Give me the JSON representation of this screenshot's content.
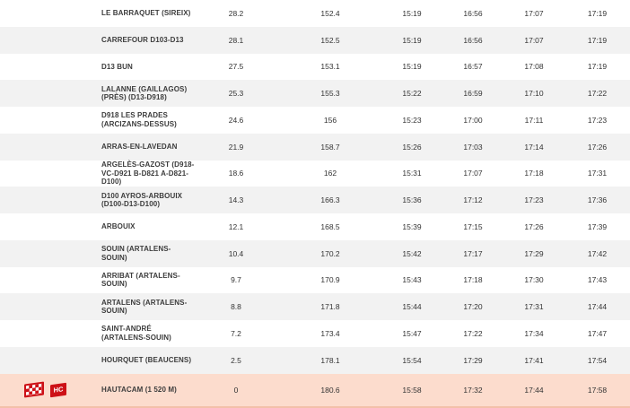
{
  "colors": {
    "row_bg": "#ffffff",
    "row_alt_bg": "#f2f2f2",
    "highlight_bg": "#fcdccd",
    "highlight_border": "#f3c0a9",
    "accent_red": "#cd1016",
    "text": "#3c3c3c"
  },
  "icons": {
    "finish_flag": "checkered-flag",
    "hc_badge_label": "HC"
  },
  "table": {
    "rows": [
      {
        "name": "LE BARRAQUET (SIREIX)",
        "km_to_finish": "28.2",
        "km_covered": "152.4",
        "times": [
          "15:19",
          "16:56",
          "17:07",
          "17:19"
        ],
        "highlight": false,
        "icons": []
      },
      {
        "name": "CARREFOUR D103-D13",
        "km_to_finish": "28.1",
        "km_covered": "152.5",
        "times": [
          "15:19",
          "16:56",
          "17:07",
          "17:19"
        ],
        "highlight": false,
        "icons": []
      },
      {
        "name": "D13 BUN",
        "km_to_finish": "27.5",
        "km_covered": "153.1",
        "times": [
          "15:19",
          "16:57",
          "17:08",
          "17:19"
        ],
        "highlight": false,
        "icons": []
      },
      {
        "name": "LALANNE (GAILLAGOS)\n(PRÈS) (D13-D918)",
        "km_to_finish": "25.3",
        "km_covered": "155.3",
        "times": [
          "15:22",
          "16:59",
          "17:10",
          "17:22"
        ],
        "highlight": false,
        "icons": []
      },
      {
        "name": "D918 LES PRADES\n(ARCIZANS-DESSUS)",
        "km_to_finish": "24.6",
        "km_covered": "156",
        "times": [
          "15:23",
          "17:00",
          "17:11",
          "17:23"
        ],
        "highlight": false,
        "icons": []
      },
      {
        "name": "ARRAS-EN-LAVEDAN",
        "km_to_finish": "21.9",
        "km_covered": "158.7",
        "times": [
          "15:26",
          "17:03",
          "17:14",
          "17:26"
        ],
        "highlight": false,
        "icons": []
      },
      {
        "name": "ARGELÈS-GAZOST (D918-\nVC-D921 B-D821 A-D821-\nD100)",
        "km_to_finish": "18.6",
        "km_covered": "162",
        "times": [
          "15:31",
          "17:07",
          "17:18",
          "17:31"
        ],
        "highlight": false,
        "icons": []
      },
      {
        "name": "D100 AYROS-ARBOUIX\n(D100-D13-D100)",
        "km_to_finish": "14.3",
        "km_covered": "166.3",
        "times": [
          "15:36",
          "17:12",
          "17:23",
          "17:36"
        ],
        "highlight": false,
        "icons": []
      },
      {
        "name": "ARBOUIX",
        "km_to_finish": "12.1",
        "km_covered": "168.5",
        "times": [
          "15:39",
          "17:15",
          "17:26",
          "17:39"
        ],
        "highlight": false,
        "icons": []
      },
      {
        "name": "SOUIN (ARTALENS-\nSOUIN)",
        "km_to_finish": "10.4",
        "km_covered": "170.2",
        "times": [
          "15:42",
          "17:17",
          "17:29",
          "17:42"
        ],
        "highlight": false,
        "icons": []
      },
      {
        "name": "ARRIBAT (ARTALENS-\nSOUIN)",
        "km_to_finish": "9.7",
        "km_covered": "170.9",
        "times": [
          "15:43",
          "17:18",
          "17:30",
          "17:43"
        ],
        "highlight": false,
        "icons": []
      },
      {
        "name": "ARTALENS (ARTALENS-\nSOUIN)",
        "km_to_finish": "8.8",
        "km_covered": "171.8",
        "times": [
          "15:44",
          "17:20",
          "17:31",
          "17:44"
        ],
        "highlight": false,
        "icons": []
      },
      {
        "name": "SAINT-ANDRÉ\n(ARTALENS-SOUIN)",
        "km_to_finish": "7.2",
        "km_covered": "173.4",
        "times": [
          "15:47",
          "17:22",
          "17:34",
          "17:47"
        ],
        "highlight": false,
        "icons": []
      },
      {
        "name": "HOURQUET (BEAUCENS)",
        "km_to_finish": "2.5",
        "km_covered": "178.1",
        "times": [
          "15:54",
          "17:29",
          "17:41",
          "17:54"
        ],
        "highlight": false,
        "icons": []
      },
      {
        "name": "HAUTACAM (1 520 M)",
        "km_to_finish": "0",
        "km_covered": "180.6",
        "times": [
          "15:58",
          "17:32",
          "17:44",
          "17:58"
        ],
        "highlight": true,
        "icons": [
          "checkered-flag",
          "hc-badge"
        ]
      }
    ]
  }
}
